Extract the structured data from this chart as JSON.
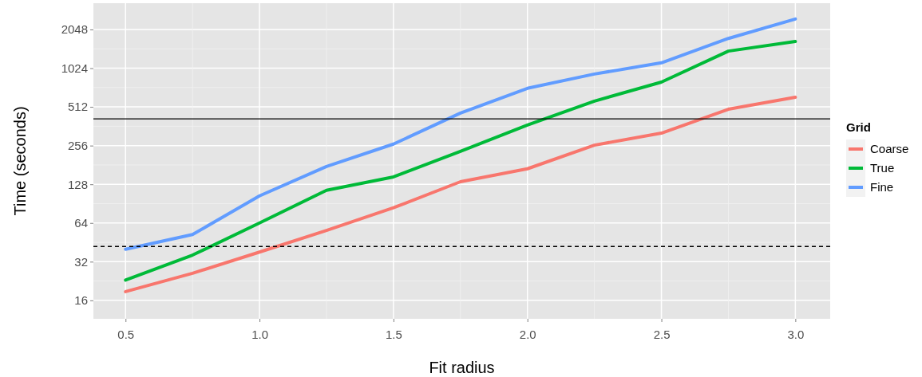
{
  "chart_data": {
    "type": "line",
    "xlabel": "Fit radius",
    "ylabel": "Time (seconds)",
    "legend_title": "Grid",
    "log": "y",
    "x": [
      0.5,
      0.75,
      1.0,
      1.25,
      1.5,
      1.75,
      2.0,
      2.25,
      2.5,
      2.75,
      3.0
    ],
    "series": [
      {
        "name": "Coarse",
        "color": "#f8766d",
        "values": [
          18.7,
          26,
          38,
          56,
          84,
          134,
          169,
          258,
          320,
          491,
          609
        ]
      },
      {
        "name": "True",
        "color": "#00ba38",
        "values": [
          23,
          36,
          64,
          115,
          146,
          231,
          370,
          568,
          798,
          1390,
          1652
        ]
      },
      {
        "name": "Fine",
        "color": "#619cff",
        "values": [
          40,
          52,
          104,
          176,
          263,
          458,
          714,
          922,
          1127,
          1745,
          2470
        ]
      }
    ],
    "xlim": [
      0.38,
      3.13
    ],
    "xticks": [
      {
        "value": 0.5,
        "label": "0.5"
      },
      {
        "value": 1.0,
        "label": "1.0"
      },
      {
        "value": 1.5,
        "label": "1.5"
      },
      {
        "value": 2.0,
        "label": "2.0"
      },
      {
        "value": 2.5,
        "label": "2.5"
      },
      {
        "value": 3.0,
        "label": "3.0"
      }
    ],
    "ylim": [
      11.5,
      3280
    ],
    "yticks": [
      16,
      32,
      64,
      128,
      256,
      512,
      1024,
      2048
    ],
    "ref_lines": [
      {
        "axis": "y",
        "value": 413,
        "color": "#000000",
        "line_style": "solid"
      },
      {
        "axis": "y",
        "value": 42,
        "color": "#000000",
        "line_style": "dashed"
      }
    ],
    "grid": true,
    "legend": "right",
    "marker": "none",
    "line_style": "solid"
  }
}
